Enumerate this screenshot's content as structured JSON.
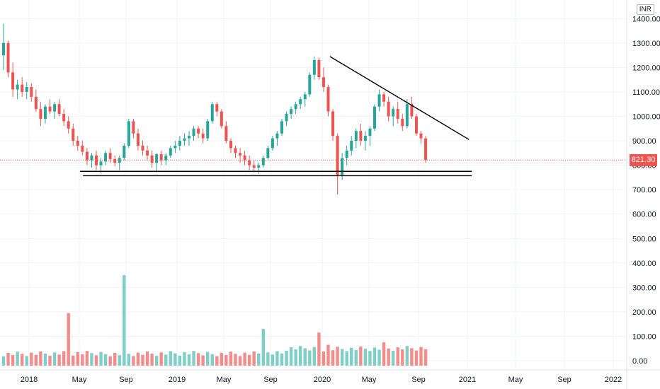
{
  "currency": "INR",
  "last_price_label": "821.30",
  "colors": {
    "up": "#26a69a",
    "down": "#ef5350",
    "volume_up": "#7fcfc8",
    "volume_down": "#f48c8a",
    "trendline": "#000000",
    "grid": "#f0f3fa"
  },
  "chart_data": {
    "type": "candlestick",
    "period": "weekly",
    "y_axis": {
      "ticks": [
        "1400.00",
        "1300.00",
        "1200.00",
        "1100.00",
        "1000.00",
        "900.00",
        "800.00",
        "700.00",
        "600.00",
        "500.00",
        "400.00",
        "300.00",
        "200.00",
        "100.00",
        "0.00"
      ],
      "range": [
        0,
        1420
      ]
    },
    "x_axis": {
      "ticks": [
        "2018",
        "May",
        "Sep",
        "2019",
        "May",
        "Sep",
        "2020",
        "May",
        "Sep",
        "2021",
        "May",
        "Sep",
        "2022"
      ]
    },
    "last_price": 821.3,
    "trendlines": [
      {
        "name": "descending resistance",
        "from": {
          "date": "2020-01-13",
          "price": 1245
        },
        "to": {
          "date": "2020-12-21",
          "price": 905
        }
      },
      {
        "name": "support",
        "from": {
          "date": "2018-05-07",
          "price": 775
        },
        "to": {
          "date": "2020-12-28",
          "price": 775
        }
      },
      {
        "name": "support",
        "from": {
          "date": "2018-05-14",
          "price": 757
        },
        "to": {
          "date": "2020-12-28",
          "price": 757
        }
      }
    ],
    "candles_approx": [
      [
        1250,
        1380,
        1190,
        1300
      ],
      [
        1300,
        1310,
        1160,
        1180
      ],
      [
        1180,
        1220,
        1080,
        1110
      ],
      [
        1110,
        1150,
        1070,
        1130
      ],
      [
        1130,
        1160,
        1080,
        1100
      ],
      [
        1100,
        1140,
        1070,
        1120
      ],
      [
        1120,
        1135,
        1060,
        1080
      ],
      [
        1080,
        1110,
        1020,
        1030
      ],
      [
        1030,
        1060,
        960,
        990
      ],
      [
        990,
        1050,
        970,
        1040
      ],
      [
        1040,
        1070,
        1010,
        1020
      ],
      [
        1020,
        1060,
        990,
        1050
      ],
      [
        1050,
        1070,
        1000,
        1010
      ],
      [
        1010,
        1030,
        960,
        980
      ],
      [
        980,
        1000,
        930,
        950
      ],
      [
        950,
        970,
        880,
        900
      ],
      [
        900,
        920,
        860,
        880
      ],
      [
        880,
        900,
        840,
        855
      ],
      [
        855,
        870,
        800,
        820
      ],
      [
        820,
        850,
        790,
        840
      ],
      [
        840,
        860,
        780,
        800
      ],
      [
        800,
        830,
        770,
        815
      ],
      [
        815,
        860,
        800,
        850
      ],
      [
        850,
        870,
        810,
        825
      ],
      [
        825,
        840,
        795,
        810
      ],
      [
        810,
        840,
        780,
        830
      ],
      [
        830,
        890,
        820,
        880
      ],
      [
        880,
        990,
        870,
        980
      ],
      [
        980,
        990,
        910,
        930
      ],
      [
        930,
        950,
        860,
        880
      ],
      [
        880,
        900,
        840,
        860
      ],
      [
        860,
        880,
        820,
        840
      ],
      [
        840,
        860,
        790,
        810
      ],
      [
        810,
        850,
        770,
        845
      ],
      [
        845,
        860,
        800,
        820
      ],
      [
        820,
        850,
        800,
        840
      ],
      [
        840,
        880,
        830,
        870
      ],
      [
        870,
        900,
        850,
        880
      ],
      [
        880,
        920,
        860,
        900
      ],
      [
        900,
        930,
        880,
        910
      ],
      [
        910,
        940,
        880,
        920
      ],
      [
        920,
        960,
        900,
        950
      ],
      [
        950,
        960,
        910,
        930
      ],
      [
        930,
        950,
        890,
        910
      ],
      [
        910,
        990,
        900,
        980
      ],
      [
        980,
        1060,
        970,
        1050
      ],
      [
        1050,
        1060,
        1000,
        1020
      ],
      [
        1020,
        1030,
        950,
        960
      ],
      [
        960,
        980,
        890,
        900
      ],
      [
        900,
        910,
        850,
        870
      ],
      [
        870,
        880,
        830,
        850
      ],
      [
        850,
        870,
        810,
        840
      ],
      [
        840,
        860,
        800,
        820
      ],
      [
        820,
        840,
        780,
        800
      ],
      [
        800,
        820,
        770,
        790
      ],
      [
        790,
        810,
        765,
        800
      ],
      [
        800,
        840,
        790,
        830
      ],
      [
        830,
        880,
        820,
        870
      ],
      [
        870,
        920,
        860,
        910
      ],
      [
        910,
        940,
        880,
        930
      ],
      [
        930,
        990,
        920,
        980
      ],
      [
        980,
        1020,
        960,
        1010
      ],
      [
        1010,
        1040,
        990,
        1030
      ],
      [
        1030,
        1060,
        1010,
        1050
      ],
      [
        1050,
        1080,
        1030,
        1070
      ],
      [
        1070,
        1100,
        1040,
        1090
      ],
      [
        1090,
        1180,
        1080,
        1170
      ],
      [
        1170,
        1245,
        1150,
        1230
      ],
      [
        1230,
        1240,
        1150,
        1160
      ],
      [
        1160,
        1200,
        1100,
        1120
      ],
      [
        1120,
        1130,
        1000,
        1020
      ],
      [
        1020,
        1030,
        900,
        920
      ],
      [
        920,
        930,
        680,
        760
      ],
      [
        760,
        850,
        740,
        830
      ],
      [
        830,
        880,
        800,
        860
      ],
      [
        860,
        920,
        840,
        900
      ],
      [
        900,
        950,
        870,
        940
      ],
      [
        940,
        970,
        880,
        900
      ],
      [
        900,
        940,
        860,
        920
      ],
      [
        920,
        960,
        880,
        950
      ],
      [
        950,
        1050,
        940,
        1040
      ],
      [
        1040,
        1110,
        1020,
        1090
      ],
      [
        1090,
        1100,
        1040,
        1060
      ],
      [
        1060,
        1080,
        980,
        1000
      ],
      [
        1000,
        1040,
        960,
        1030
      ],
      [
        1030,
        1060,
        970,
        990
      ],
      [
        990,
        1010,
        940,
        960
      ],
      [
        960,
        1070,
        950,
        1050
      ],
      [
        1050,
        1080,
        990,
        1000
      ],
      [
        1000,
        1010,
        920,
        930
      ],
      [
        930,
        940,
        890,
        910
      ],
      [
        910,
        920,
        810,
        821.3
      ]
    ]
  }
}
